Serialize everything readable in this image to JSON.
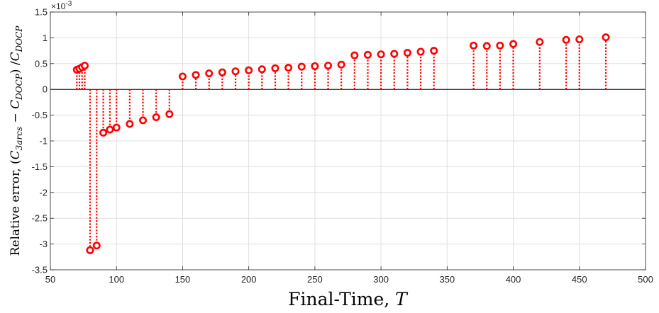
{
  "chart_data": {
    "type": "stem",
    "xlabel": "Final-Time, T",
    "ylabel": "Relative error, (C_3arcs − C_DOCP) / C_DOCP",
    "ylabel_parts": {
      "prefix": "Relative error, (",
      "c1": "C",
      "c1_sub": "3arcs",
      "minus": " − ",
      "c2": "C",
      "c2_sub": "DOCP",
      "mid": ") /",
      "c3": "C",
      "c3_sub": "DOCP"
    },
    "xlabel_parts": {
      "text": "Final-Time, ",
      "var": "T"
    },
    "y_exponent_label": "×10",
    "y_exponent_power": "-3",
    "xlim": [
      50,
      500
    ],
    "ylim": [
      -3.5,
      1.5
    ],
    "y_scale_factor": 0.001,
    "xticks": [
      50,
      100,
      150,
      200,
      250,
      300,
      350,
      400,
      450,
      500
    ],
    "xtick_labels": [
      "50",
      "100",
      "150",
      "200",
      "250",
      "300",
      "350",
      "400",
      "450",
      "500"
    ],
    "yticks": [
      -3.5,
      -3,
      -2.5,
      -2,
      -1.5,
      -1,
      -0.5,
      0,
      0.5,
      1,
      1.5
    ],
    "ytick_labels": [
      "-3.5",
      "-3",
      "-2.5",
      "-2",
      "-1.5",
      "-1",
      "-0.5",
      "0",
      "0.5",
      "1",
      "1.5"
    ],
    "grid": true,
    "marker_color": "#ff0000",
    "baseline_color": "#000000",
    "series": [
      {
        "x": [
          70,
          72,
          74,
          76,
          80,
          85,
          90,
          95,
          100,
          110,
          120,
          130,
          140,
          150,
          160,
          170,
          180,
          190,
          200,
          210,
          220,
          230,
          240,
          250,
          260,
          270,
          280,
          290,
          300,
          310,
          320,
          330,
          340,
          370,
          380,
          390,
          400,
          420,
          440,
          450,
          470
        ],
        "y": [
          0.38,
          0.4,
          0.43,
          0.46,
          -3.12,
          -3.03,
          -0.84,
          -0.78,
          -0.74,
          -0.67,
          -0.6,
          -0.54,
          -0.48,
          0.25,
          0.28,
          0.31,
          0.33,
          0.35,
          0.37,
          0.39,
          0.41,
          0.42,
          0.44,
          0.45,
          0.46,
          0.48,
          0.66,
          0.67,
          0.68,
          0.69,
          0.71,
          0.73,
          0.75,
          0.85,
          0.84,
          0.85,
          0.88,
          0.92,
          0.96,
          0.97,
          1.01
        ]
      }
    ]
  }
}
